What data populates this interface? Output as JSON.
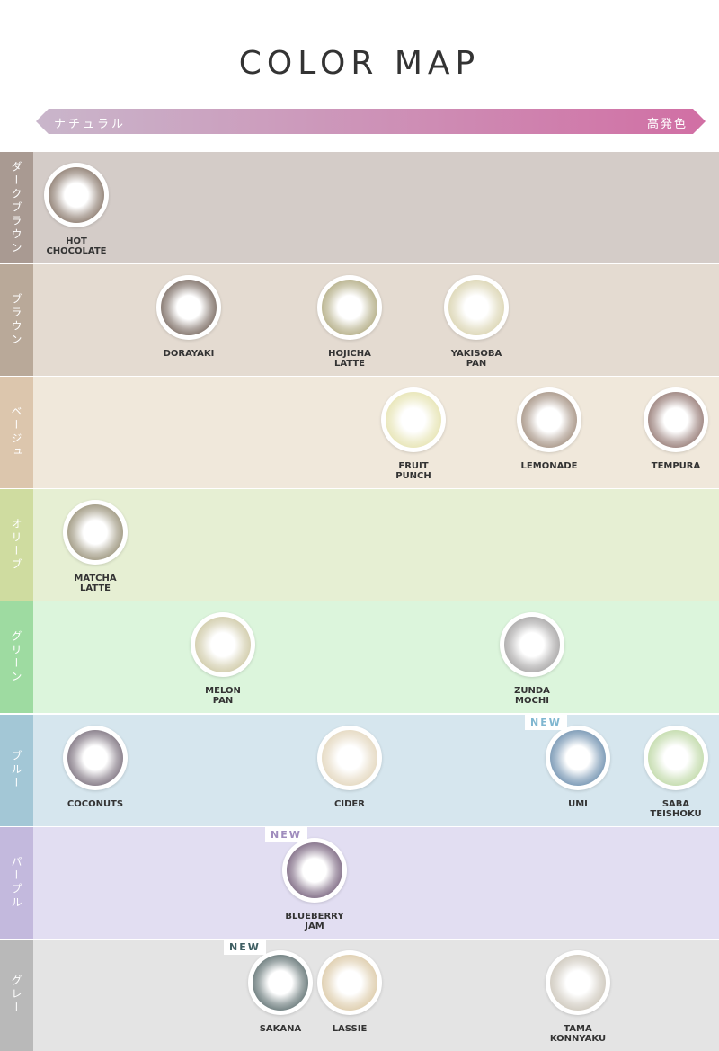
{
  "title": "COLOR MAP",
  "scale": {
    "left": "ナチュラル",
    "right": "高発色"
  },
  "rows": [
    {
      "label": "ダークブラウン",
      "bg": "#d4ccc8",
      "label_bg": "#a99a92",
      "lenses": [
        {
          "name": "HOT\nCHOCOLATE",
          "color": "#7d6a5c"
        }
      ]
    },
    {
      "label": "ブラウン",
      "bg": "#e4dbd1",
      "label_bg": "#b9a999",
      "lenses": [
        {
          "name": "DORAYAKI",
          "color": "#6b5a50"
        },
        {
          "name": "HOJICHA\nLATTE",
          "color": "#a9a275"
        },
        {
          "name": "YAKISOBA\nPAN",
          "color": "#d6cfa8"
        }
      ]
    },
    {
      "label": "ベージュ",
      "bg": "#f0e8db",
      "label_bg": "#dcc6ad",
      "lenses": [
        {
          "name": "FRUIT\nPUNCH",
          "color": "#e3e0a8"
        },
        {
          "name": "LEMONADE",
          "color": "#9a8574"
        },
        {
          "name": "TEMPURA",
          "color": "#8a6c66"
        }
      ]
    },
    {
      "label": "オリーブ",
      "bg": "#e6efd3",
      "label_bg": "#cfdca0",
      "lenses": [
        {
          "name": "MATCHA\nLATTE",
          "color": "#8f876c"
        }
      ]
    },
    {
      "label": "グリーン",
      "bg": "#dcf5dc",
      "label_bg": "#9edba1",
      "lenses": [
        {
          "name": "MELON\nPAN",
          "color": "#c9c39c"
        },
        {
          "name": "ZUNDA\nMOCHI",
          "color": "#9c9a9a"
        }
      ]
    },
    {
      "label": "ブルー",
      "bg": "#d6e6ee",
      "label_bg": "#a3c7d6",
      "lenses": [
        {
          "name": "COCONUTS",
          "color": "#6e6270"
        },
        {
          "name": "CIDER",
          "color": "#e0d2b6"
        },
        {
          "name": "UMI",
          "color": "#5f84a6",
          "new": "NEW"
        },
        {
          "name": "SABA\nTEISHOKU",
          "color": "#b9d59e"
        }
      ]
    },
    {
      "label": "パープル",
      "bg": "#e2def2",
      "label_bg": "#c3b9dd",
      "lenses": [
        {
          "name": "BLUEBERRY\nJAM",
          "color": "#6a5370",
          "new": "NEW"
        }
      ]
    },
    {
      "label": "グレー",
      "bg": "#e4e4e4",
      "label_bg": "#b9b9b9",
      "lenses": [
        {
          "name": "SAKANA",
          "color": "#4f6263",
          "new": "NEW"
        },
        {
          "name": "LASSIE",
          "color": "#d8c49e"
        },
        {
          "name": "TAMA\nKONNYAKU",
          "color": "#c7c0b3"
        }
      ]
    }
  ],
  "new_colors": {
    "UMI": "#7fb6d0",
    "BLUEBERRY\nJAM": "#9f8cbd",
    "SAKANA": "#3f5f63"
  }
}
